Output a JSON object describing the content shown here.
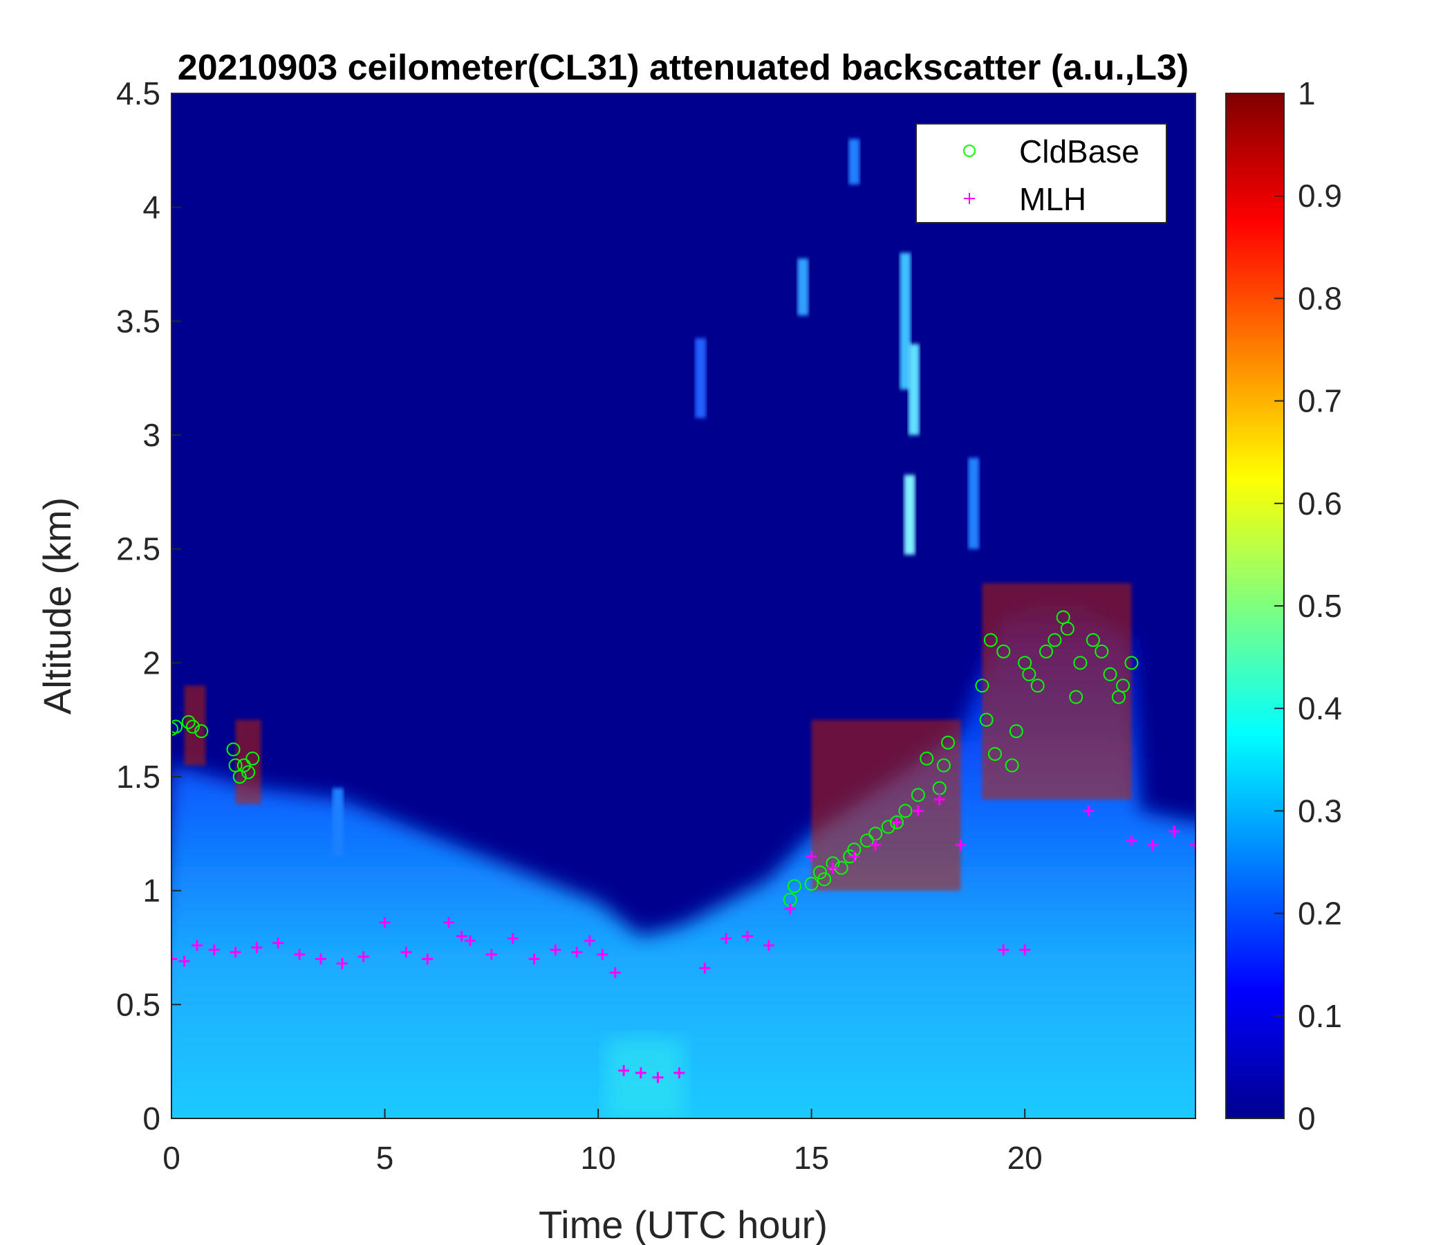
{
  "chart_data": {
    "type": "heatmap",
    "title": "20210903 ceilometer(CL31) attenuated backscatter (a.u.,L3)",
    "xlabel": "Time (UTC hour)",
    "ylabel": "Altitude (km)",
    "xlim": [
      0,
      24
    ],
    "ylim": [
      0,
      4.5
    ],
    "xticks": [
      "0",
      "5",
      "10",
      "15",
      "20"
    ],
    "xtick_values": [
      0,
      5,
      10,
      15,
      20
    ],
    "yticks": [
      "0",
      "0.5",
      "1",
      "1.5",
      "2",
      "2.5",
      "3",
      "3.5",
      "4",
      "4.5"
    ],
    "ytick_values": [
      0,
      0.5,
      1,
      1.5,
      2,
      2.5,
      3,
      3.5,
      4,
      4.5
    ],
    "colormap": "jet",
    "clim": [
      0,
      1
    ],
    "colorbar_ticks": [
      "0",
      "0.1",
      "0.2",
      "0.3",
      "0.4",
      "0.5",
      "0.6",
      "0.7",
      "0.8",
      "0.9",
      "1"
    ],
    "colorbar_tick_values": [
      0,
      0.1,
      0.2,
      0.3,
      0.4,
      0.5,
      0.6,
      0.7,
      0.8,
      0.9,
      1
    ],
    "legend_position": "top-right",
    "series": [
      {
        "name": "CldBase",
        "marker": "circle",
        "color": "#00ff00",
        "x": [
          0,
          0.1,
          0.4,
          0.5,
          0.7,
          1.45,
          1.5,
          1.6,
          1.7,
          1.8,
          1.9,
          14.5,
          14.6,
          15,
          15.2,
          15.3,
          15.5,
          15.7,
          15.9,
          16,
          16.3,
          16.5,
          16.8,
          17,
          17.2,
          17.5,
          17.7,
          18,
          18.1,
          18.2,
          19,
          19.1,
          19.2,
          19.3,
          19.5,
          19.7,
          19.8,
          20,
          20.1,
          20.3,
          20.5,
          20.7,
          20.9,
          21,
          21.2,
          21.3,
          21.6,
          21.8,
          22,
          22.2,
          22.3,
          22.5
        ],
        "y": [
          1.71,
          1.72,
          1.74,
          1.72,
          1.7,
          1.62,
          1.55,
          1.5,
          1.55,
          1.52,
          1.58,
          0.96,
          1.02,
          1.03,
          1.08,
          1.05,
          1.12,
          1.1,
          1.15,
          1.18,
          1.22,
          1.25,
          1.28,
          1.3,
          1.35,
          1.42,
          1.58,
          1.45,
          1.55,
          1.65,
          1.9,
          1.75,
          2.1,
          1.6,
          2.05,
          1.55,
          1.7,
          2.0,
          1.95,
          1.9,
          2.05,
          2.1,
          2.2,
          2.15,
          1.85,
          2.0,
          2.1,
          2.05,
          1.95,
          1.85,
          1.9,
          2.0
        ]
      },
      {
        "name": "MLH",
        "marker": "plus",
        "color": "#ff00ff",
        "x": [
          0,
          0.3,
          0.6,
          1,
          1.5,
          2,
          2.5,
          3,
          3.5,
          4,
          4.5,
          5,
          5.5,
          6,
          6.5,
          6.8,
          7,
          7.5,
          8,
          8.5,
          9,
          9.5,
          9.8,
          10.1,
          10.4,
          10.6,
          11,
          11.4,
          11.9,
          12.5,
          13,
          13.5,
          14,
          14.5,
          15,
          15.5,
          16,
          16.5,
          17,
          17.5,
          18,
          18.5,
          19.5,
          20,
          21.5,
          22.5,
          23,
          23.5,
          24
        ],
        "y": [
          0.7,
          0.69,
          0.76,
          0.74,
          0.73,
          0.75,
          0.77,
          0.72,
          0.7,
          0.68,
          0.71,
          0.86,
          0.73,
          0.7,
          0.86,
          0.8,
          0.78,
          0.72,
          0.79,
          0.7,
          0.74,
          0.73,
          0.78,
          0.72,
          0.64,
          0.21,
          0.2,
          0.18,
          0.2,
          0.66,
          0.79,
          0.8,
          0.76,
          0.92,
          1.15,
          1.1,
          1.15,
          1.2,
          1.3,
          1.35,
          1.4,
          1.2,
          0.74,
          0.74,
          1.35,
          1.22,
          1.2,
          1.26,
          1.2
        ]
      }
    ]
  }
}
